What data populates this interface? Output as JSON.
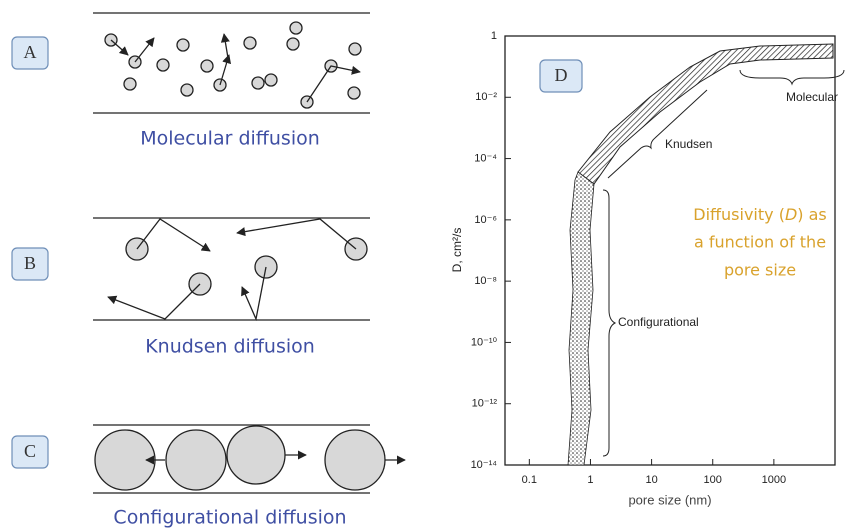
{
  "panels": [
    {
      "label": "A",
      "caption": "Molecular diffusion"
    },
    {
      "label": "B",
      "caption": "Knudsen diffusion"
    },
    {
      "label": "C",
      "caption": "Configurational diffusion"
    }
  ],
  "plot": {
    "label": "D",
    "y_axis_label": "D, cm²/s",
    "x_axis_label": "pore size (nm)",
    "xscale": "log",
    "yscale": "log",
    "xlim": [
      0.04,
      10000
    ],
    "ylim": [
      1e-14,
      1
    ],
    "xticks": [
      0.1,
      1,
      10,
      100,
      1000
    ],
    "yticks": [
      {
        "value": 1e-14,
        "label": "10⁻¹⁴"
      },
      {
        "value": 1e-12,
        "label": "10⁻¹²"
      },
      {
        "value": 1e-10,
        "label": "10⁻¹⁰"
      },
      {
        "value": 1e-08,
        "label": "10⁻⁸"
      },
      {
        "value": 1e-06,
        "label": "10⁻⁶"
      },
      {
        "value": 0.0001,
        "label": "10⁻⁴"
      },
      {
        "value": 0.01,
        "label": "10⁻²"
      },
      1
    ],
    "regions": [
      "Molecular",
      "Knudsen",
      "Configurational"
    ],
    "note": {
      "first_line": [
        "Diffusivity (",
        "D",
        ") as"
      ],
      "lines": [
        "a function of the",
        "pore size"
      ]
    }
  }
}
